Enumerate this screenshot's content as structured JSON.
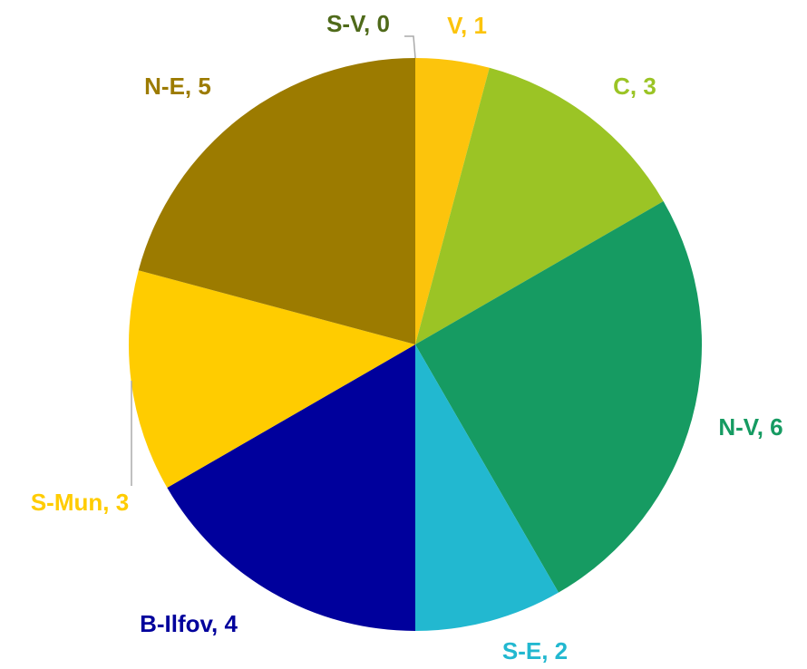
{
  "chart_data": {
    "type": "pie",
    "categories": [
      "S-V",
      "V",
      "C",
      "N-V",
      "S-E",
      "B-Ilfov",
      "S-Mun",
      "N-E"
    ],
    "values": [
      0,
      1,
      3,
      6,
      2,
      4,
      3,
      5
    ],
    "value_labels": [
      "S-V, 0",
      "V, 1",
      "C, 3",
      "N-V, 6",
      "S-E, 2",
      "B-Ilfov, 4",
      "S-Mun, 3",
      "N-E, 5"
    ],
    "colors": [
      "#5b7a1f",
      "#fcc40c",
      "#9bc425",
      "#169b62",
      "#22b8d0",
      "#00009c",
      "#ffcc00",
      "#9c7b00"
    ],
    "label_colors": [
      "#4f6a1a",
      "#fcc40c",
      "#9bc425",
      "#169b62",
      "#22b8d0",
      "#00009c",
      "#ffcc00",
      "#9c7b00"
    ]
  }
}
